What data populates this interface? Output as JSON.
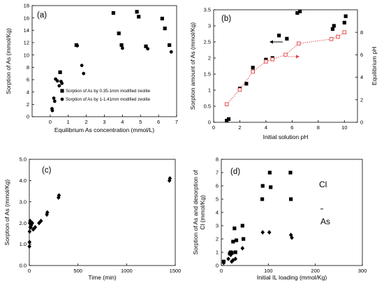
{
  "chart_data": [
    {
      "panel": "(a)",
      "type": "scatter",
      "title": "",
      "xlabel": "Equilibrium As concentration (mmol/L)",
      "ylabel": "Sorption of As (mmol/Kg)",
      "xlim": [
        -1,
        7
      ],
      "ylim": [
        0,
        18
      ],
      "xticks": [
        0,
        1,
        2,
        3,
        4,
        5,
        6,
        7
      ],
      "yticks": [
        0,
        2,
        4,
        6,
        8,
        10,
        12,
        14,
        16,
        18
      ],
      "grid": false,
      "legend": "bottom-right",
      "series": [
        {
          "name": "Sorption of As by 0.35-1mm modified zeolite",
          "marker": "square",
          "x": [
            0.55,
            1.45,
            3.5,
            3.8,
            3.95,
            4.8,
            4.9,
            5.3,
            6.2,
            6.35,
            6.6
          ],
          "y": [
            7.2,
            11.6,
            16.8,
            13.5,
            11.6,
            17.0,
            16.2,
            11.4,
            15.9,
            14.3,
            11.6
          ]
        },
        {
          "name": "Sorption of As by 1-1.41mm modified zeolite",
          "marker": "circle",
          "x": [
            0.1,
            0.12,
            0.2,
            0.25,
            0.3,
            0.4,
            0.5,
            0.6,
            0.65,
            1.5,
            1.75,
            1.85,
            4.0,
            5.4,
            6.7
          ],
          "y": [
            1.3,
            1.0,
            3.0,
            2.5,
            6.1,
            5.8,
            5.0,
            5.7,
            5.4,
            11.5,
            8.3,
            7.0,
            11.1,
            11.0,
            10.5
          ]
        }
      ]
    },
    {
      "panel": "(b)",
      "type": "scatter",
      "title": "",
      "xlabel": "Initial solution pH",
      "ylabel": "Sorption amount of As (mmol/Kg)",
      "ylabel_right": "Equilibrium pH",
      "xlim": [
        0,
        11
      ],
      "ylim": [
        0,
        3.5
      ],
      "ylim_right": [
        0,
        10
      ],
      "xticks": [
        0,
        2,
        4,
        6,
        8,
        10
      ],
      "yticks": [
        0,
        0.5,
        1,
        1.5,
        2,
        2.5,
        3,
        3.5
      ],
      "yticks_right": [
        0,
        2,
        4,
        6,
        8
      ],
      "grid": false,
      "series": [
        {
          "axis": "left",
          "marker": "square",
          "x": [
            1.0,
            1.15,
            2.0,
            2.5,
            3.0,
            4.0,
            4.5,
            5.0,
            5.6,
            6.4,
            6.6,
            9.1,
            9.2,
            10.0,
            10.1
          ],
          "y": [
            0.05,
            0.1,
            1.05,
            1.2,
            1.7,
            1.95,
            2.0,
            2.7,
            2.6,
            3.4,
            3.45,
            2.9,
            3.0,
            3.1,
            3.3
          ]
        },
        {
          "axis": "right",
          "marker": "open-square",
          "line": "dotted",
          "x": [
            1.0,
            2.0,
            3.0,
            4.0,
            4.5,
            5.5,
            6.5,
            9.0,
            9.5,
            10.0
          ],
          "y": [
            1.6,
            2.9,
            4.5,
            5.4,
            5.6,
            6.0,
            7.0,
            7.4,
            7.6,
            8.0
          ]
        }
      ]
    },
    {
      "panel": "(c)",
      "type": "scatter",
      "title": "",
      "xlabel": "Time (min)",
      "ylabel": "Sorption of As (mmol/Kg)",
      "xlim": [
        0,
        1500
      ],
      "ylim": [
        0,
        5
      ],
      "xticks": [
        0,
        500,
        1000,
        1500
      ],
      "yticks": [
        0.0,
        1.0,
        2.0,
        3.0,
        4.0,
        5.0
      ],
      "ytick_labels": [
        "0.0",
        "1.0",
        "2.0",
        "3.0",
        "4.0",
        "5.0"
      ],
      "grid": false,
      "series": [
        {
          "marker": "diamond",
          "x": [
            1,
            2,
            3,
            5,
            8,
            10,
            15,
            20,
            25,
            30,
            40,
            60,
            100,
            120,
            180,
            185,
            300,
            305,
            1440,
            1445
          ],
          "y": [
            0.9,
            1.1,
            1.6,
            2.0,
            2.1,
            1.8,
            1.8,
            1.9,
            2.0,
            2.0,
            1.7,
            1.8,
            2.0,
            2.1,
            2.4,
            2.5,
            3.2,
            3.3,
            4.0,
            4.1
          ]
        }
      ]
    },
    {
      "panel": "(d)",
      "type": "scatter",
      "title": "",
      "xlabel": "Initial IL loading (mmol/Kg)",
      "ylabel": "Sorption of As and desorption of Cl (mmol/Kg)",
      "xlim": [
        0,
        300
      ],
      "ylim": [
        0,
        8
      ],
      "xticks": [
        0,
        100,
        200,
        300
      ],
      "yticks": [
        0,
        1,
        2,
        3,
        4,
        5,
        6,
        7,
        8
      ],
      "grid": false,
      "annotations": [
        "Cl",
        "As"
      ],
      "series": [
        {
          "name": "Cl",
          "marker": "square",
          "x": [
            5,
            18,
            20,
            22,
            25,
            28,
            30,
            32,
            45,
            47,
            87,
            88,
            103,
            105,
            147,
            148
          ],
          "y": [
            0.3,
            0.9,
            1.0,
            0.95,
            1.8,
            2.8,
            1.0,
            1.9,
            3.0,
            2.0,
            5.0,
            6.0,
            7.0,
            5.9,
            7.0,
            5.0
          ]
        },
        {
          "name": "As",
          "marker": "diamond",
          "x": [
            5,
            15,
            18,
            20,
            22,
            25,
            30,
            45,
            88,
            102,
            148,
            150
          ],
          "y": [
            0.2,
            0.5,
            0.9,
            0.8,
            0.3,
            0.4,
            0.5,
            1.3,
            2.5,
            2.5,
            2.3,
            2.1
          ]
        }
      ]
    }
  ]
}
